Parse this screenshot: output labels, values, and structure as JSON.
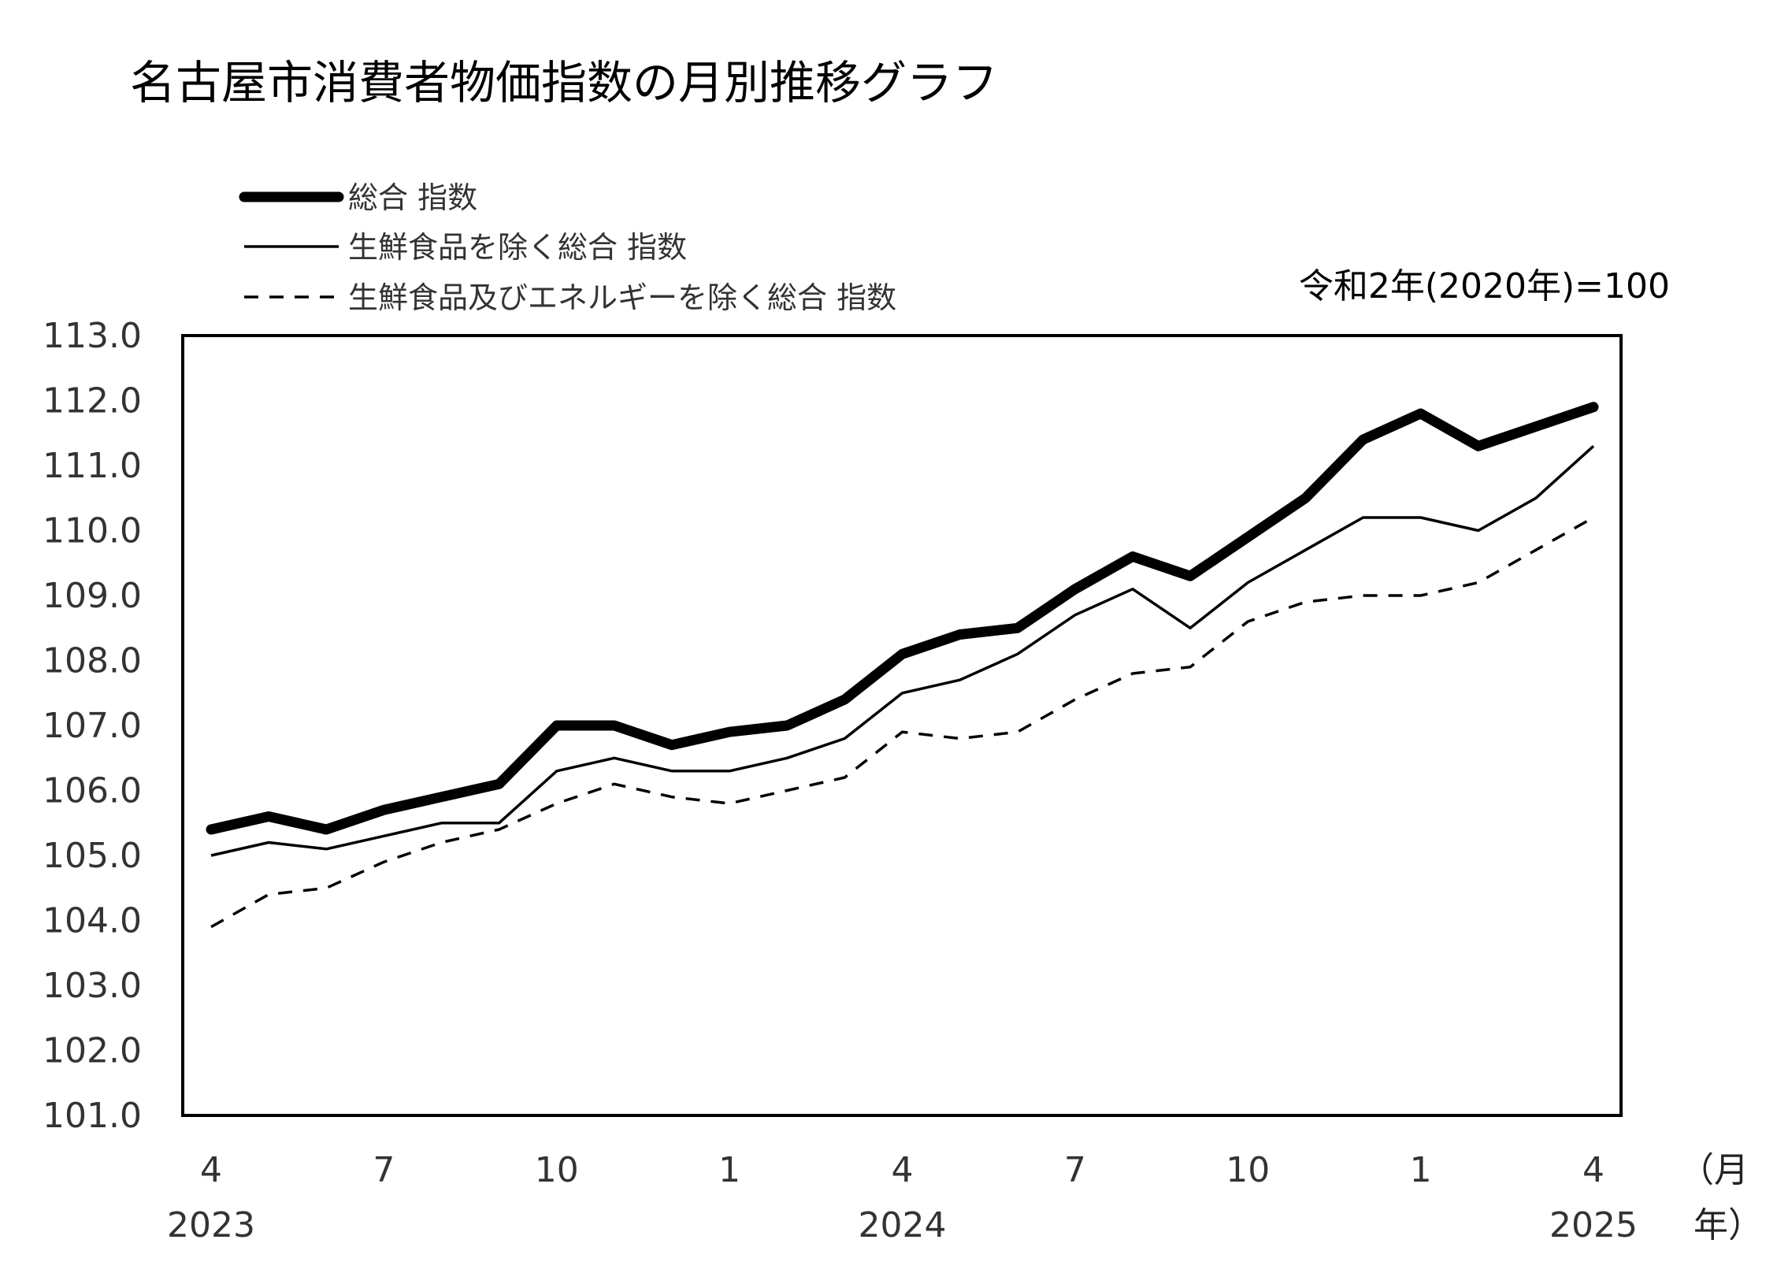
{
  "chart_data": {
    "type": "line",
    "title": "名古屋市消費者物価指数の月別推移グラフ",
    "base_note": "令和2年(2020年)=100",
    "xlabel_month_unit": "（月",
    "xlabel_year_unit": "年）",
    "ylim": [
      101.0,
      113.0
    ],
    "y_ticks": [
      "113.0",
      "112.0",
      "111.0",
      "110.0",
      "109.0",
      "108.0",
      "107.0",
      "106.0",
      "105.0",
      "104.0",
      "103.0",
      "102.0",
      "101.0"
    ],
    "x": [
      "2023-04",
      "2023-05",
      "2023-06",
      "2023-07",
      "2023-08",
      "2023-09",
      "2023-10",
      "2023-11",
      "2023-12",
      "2024-01",
      "2024-02",
      "2024-03",
      "2024-04",
      "2024-05",
      "2024-06",
      "2024-07",
      "2024-08",
      "2024-09",
      "2024-10",
      "2024-11",
      "2024-12",
      "2025-01",
      "2025-02",
      "2025-03",
      "2025-04"
    ],
    "month_tick_labels": [
      {
        "index": 0,
        "label": "4"
      },
      {
        "index": 3,
        "label": "7"
      },
      {
        "index": 6,
        "label": "10"
      },
      {
        "index": 9,
        "label": "1"
      },
      {
        "index": 12,
        "label": "4"
      },
      {
        "index": 15,
        "label": "7"
      },
      {
        "index": 18,
        "label": "10"
      },
      {
        "index": 21,
        "label": "1"
      },
      {
        "index": 24,
        "label": "4"
      }
    ],
    "year_tick_labels": [
      {
        "index": 0,
        "label": "2023"
      },
      {
        "index": 12,
        "label": "2024"
      },
      {
        "index": 24,
        "label": "2025"
      }
    ],
    "grid": false,
    "legend_position": "top-left",
    "series": [
      {
        "name": "総合 指数",
        "style": "thick",
        "color": "#000000",
        "values": [
          105.4,
          105.6,
          105.4,
          105.7,
          105.9,
          106.1,
          107.0,
          107.0,
          106.7,
          106.9,
          107.0,
          107.4,
          108.1,
          108.4,
          108.5,
          109.1,
          109.6,
          109.3,
          109.9,
          110.5,
          111.4,
          111.8,
          111.3,
          111.6,
          111.9
        ]
      },
      {
        "name": "生鮮食品を除く総合 指数",
        "style": "thin",
        "color": "#000000",
        "values": [
          105.0,
          105.2,
          105.1,
          105.3,
          105.5,
          105.5,
          106.3,
          106.5,
          106.3,
          106.3,
          106.5,
          106.8,
          107.5,
          107.7,
          108.1,
          108.7,
          109.1,
          108.5,
          109.2,
          109.7,
          110.2,
          110.2,
          110.0,
          110.5,
          111.3
        ]
      },
      {
        "name": "生鮮食品及びエネルギーを除く総合 指数",
        "style": "dashed",
        "color": "#000000",
        "values": [
          103.9,
          104.4,
          104.5,
          104.9,
          105.2,
          105.4,
          105.8,
          106.1,
          105.9,
          105.8,
          106.0,
          106.2,
          106.9,
          106.8,
          106.9,
          107.4,
          107.8,
          107.9,
          108.6,
          108.9,
          109.0,
          109.0,
          109.2,
          109.7,
          110.2
        ]
      }
    ]
  }
}
